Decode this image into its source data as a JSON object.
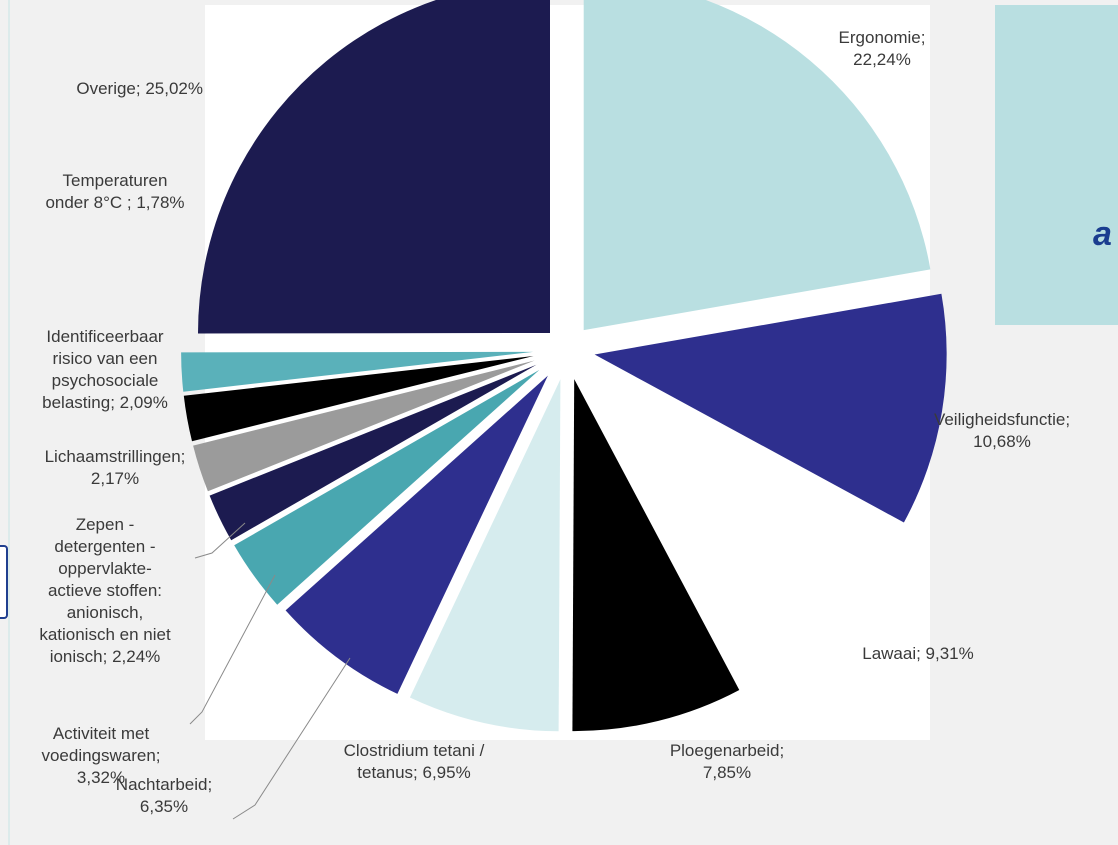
{
  "colors": {
    "background": "#f1f1f1",
    "plot_background": "#ffffff",
    "callout_box": "#b9dfe1",
    "callout_text": "#1a3d8f",
    "leader_line": "#8a8a8a"
  },
  "callout": {
    "text": "a"
  },
  "chart_data": {
    "type": "pie",
    "exploded": true,
    "direction": "clockwise",
    "start": "top",
    "value_unit": "%",
    "slices": [
      {
        "label": "Ergonomie",
        "value": 22.24,
        "color": "#b9dfe1",
        "text_lines": [
          "Ergonomie;",
          "22,24%"
        ]
      },
      {
        "label": "Veiligheidsfunctie",
        "value": 10.68,
        "color": "#2e2f8e",
        "text_lines": [
          "Veiligheidsfunctie;",
          "10,68%"
        ]
      },
      {
        "label": "Lawaai",
        "value": 9.31,
        "color": "#ffffff",
        "text_lines": [
          "Lawaai; 9,31%"
        ]
      },
      {
        "label": "Ploegenarbeid",
        "value": 7.85,
        "color": "#000000",
        "text_lines": [
          "Ploegenarbeid;",
          "7,85%"
        ]
      },
      {
        "label": "Clostridium tetani / tetanus",
        "value": 6.95,
        "color": "#d6ecee",
        "text_lines": [
          "Clostridium tetani /",
          "tetanus; 6,95%"
        ]
      },
      {
        "label": "Nachtarbeid",
        "value": 6.35,
        "color": "#2e2f8e",
        "text_lines": [
          "Nachtarbeid;",
          "6,35%"
        ]
      },
      {
        "label": "Activiteit met voedingswaren",
        "value": 3.32,
        "color": "#49a7b0",
        "text_lines": [
          "Activiteit met",
          "voedingswaren;",
          "3,32%"
        ]
      },
      {
        "label": "Zepen - detergenten - oppervlakte-actieve stoffen: anionisch, kationisch en niet ionisch",
        "value": 2.24,
        "color": "#1c1b50",
        "text_lines": [
          "Zepen -",
          "detergenten -",
          "oppervlakte-",
          "actieve stoffen:",
          "anionisch,",
          "kationisch en niet",
          "ionisch; 2,24%"
        ]
      },
      {
        "label": "Lichaamstrillingen",
        "value": 2.17,
        "color": "#9b9b9b",
        "text_lines": [
          "Lichaamstrillingen;",
          "2,17%"
        ]
      },
      {
        "label": "Identificeerbaar risico van een psychosociale belasting",
        "value": 2.09,
        "color": "#000000",
        "text_lines": [
          "Identificeerbaar",
          "risico van een",
          "psychosociale",
          "belasting; 2,09%"
        ]
      },
      {
        "label": "Temperaturen onder 8°C",
        "value": 1.78,
        "color": "#5ab1ba",
        "text_lines": [
          "Temperaturen",
          "onder 8°C ; 1,78%"
        ]
      },
      {
        "label": "Overige",
        "value": 25.02,
        "color": "#1c1b50",
        "text_lines": [
          "Overige; 25,02%"
        ]
      }
    ]
  }
}
